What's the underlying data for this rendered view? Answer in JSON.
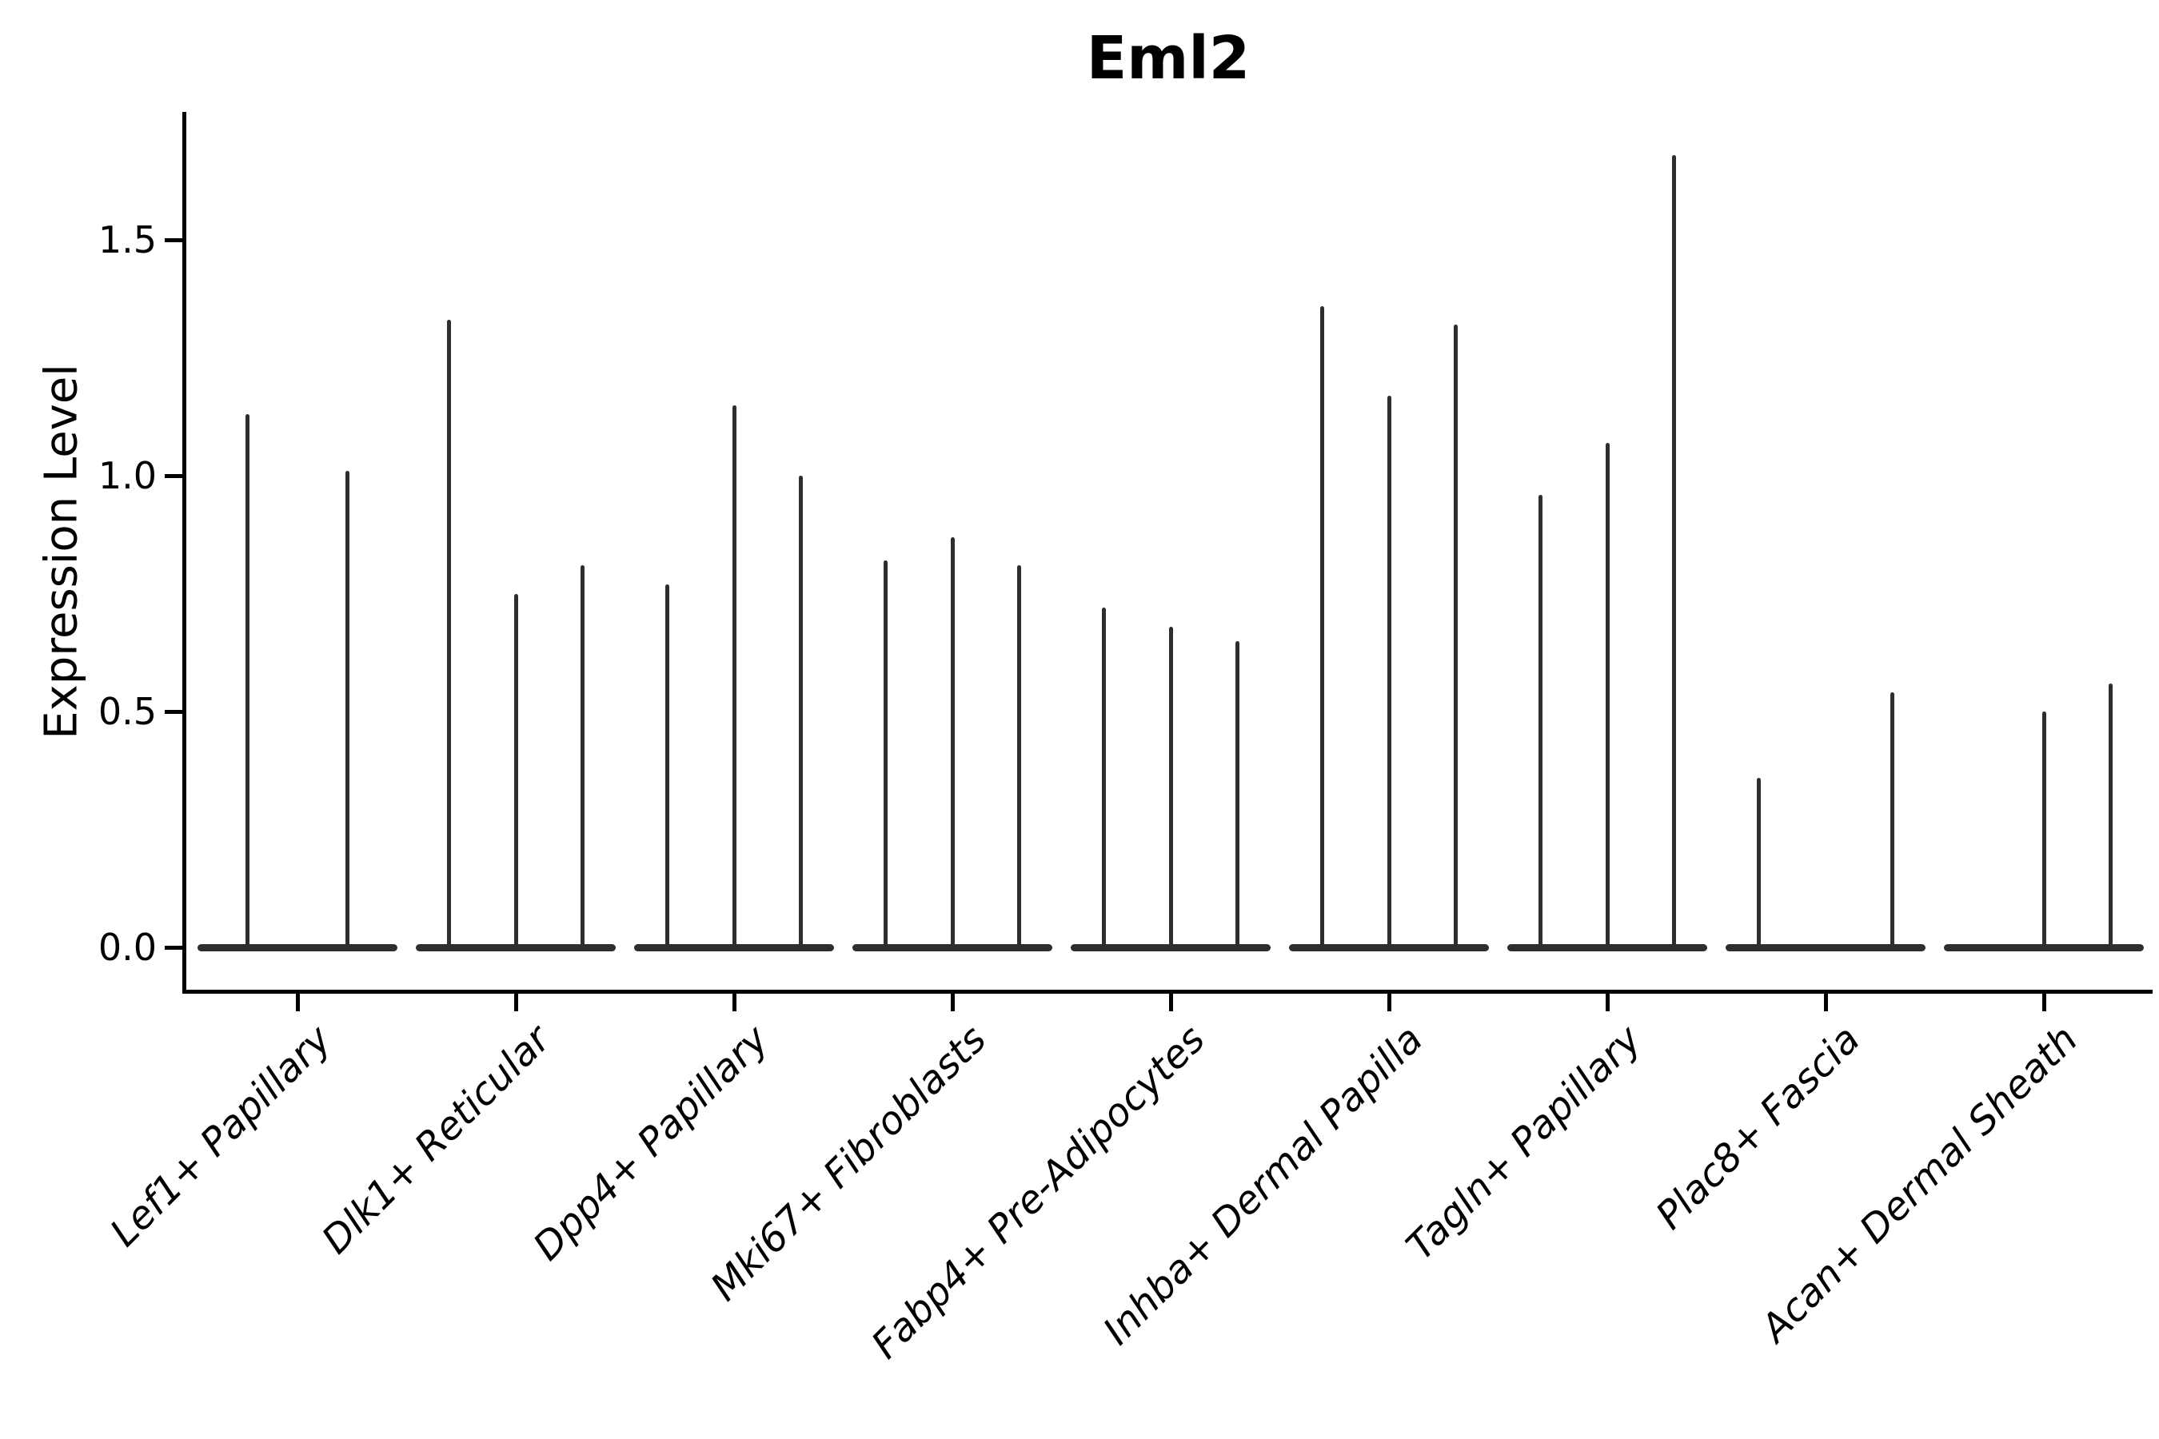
{
  "title": "Eml2",
  "ylabel": "Expression Level",
  "colors": {
    "violin": "#2e2e2e",
    "axis": "#000000",
    "text": "#000000",
    "background": "#ffffff"
  },
  "chart_data": {
    "type": "violin",
    "title": "Eml2",
    "xlabel": "",
    "ylabel": "Expression Level",
    "ylim": [
      0,
      1.77
    ],
    "grid": false,
    "legend": "none",
    "yticks": [
      {
        "label": "0.0",
        "value": 0.0
      },
      {
        "label": "0.5",
        "value": 0.5
      },
      {
        "label": "1.0",
        "value": 1.0
      },
      {
        "label": "1.5",
        "value": 1.5
      }
    ],
    "categories": [
      "Lef1+ Papillary",
      "Dlk1+ Reticular",
      "Dpp4+ Papillary",
      "Mki67+ Fibroblasts",
      "Fabp4+ Pre-Adipocytes",
      "Inhba+ Dermal Papilla",
      "Tagln+ Papillary",
      "Plac8+ Fascia",
      "Acan+ Dermal Sheath"
    ],
    "groups": [
      {
        "category": "Lef1+ Papillary",
        "violin_max": [
          1.13,
          1.01
        ]
      },
      {
        "category": "Dlk1+ Reticular",
        "violin_max": [
          1.33,
          0.75,
          0.81
        ]
      },
      {
        "category": "Dpp4+ Papillary",
        "violin_max": [
          0.77,
          1.15,
          1.0
        ]
      },
      {
        "category": "Mki67+ Fibroblasts",
        "violin_max": [
          0.82,
          0.87,
          0.81
        ]
      },
      {
        "category": "Fabp4+ Pre-Adipocytes",
        "violin_max": [
          0.72,
          0.68,
          0.65
        ]
      },
      {
        "category": "Inhba+ Dermal Papilla",
        "violin_max": [
          1.36,
          1.17,
          1.32
        ]
      },
      {
        "category": "Tagln+ Papillary",
        "violin_max": [
          0.96,
          1.07,
          1.68
        ]
      },
      {
        "category": "Plac8+ Fascia",
        "violin_max": [
          0.36,
          0.0,
          0.54
        ]
      },
      {
        "category": "Acan+ Dermal Sheath",
        "violin_max": [
          0.0,
          0.5,
          0.56
        ]
      }
    ]
  }
}
